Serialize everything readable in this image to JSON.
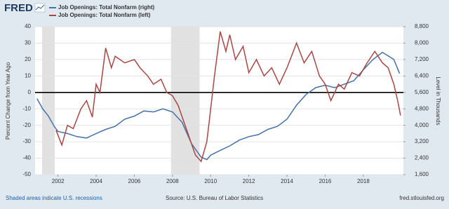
{
  "logo": "FRED",
  "chart_data": {
    "type": "line",
    "ylabel": "Percent Change from Year Ago",
    "y2label": "Level in Thousands",
    "footer_left": "Shaded areas indicate U.S. recessions",
    "source": "Source: U.S. Bureau of Labor Statistics",
    "footer_right": "fred.stlouisfed.org",
    "xlim": [
      2000.8,
      2020.1
    ],
    "xticks": [
      2002,
      2004,
      2006,
      2008,
      2010,
      2012,
      2014,
      2016,
      2018
    ],
    "ylim": [
      -50,
      40
    ],
    "yticks": [
      40,
      30,
      20,
      10,
      0,
      -10,
      -20,
      -30,
      -40,
      -50
    ],
    "y2lim": [
      1600,
      8800
    ],
    "y2ticks": [
      {
        "value": 8800,
        "label": "8,800"
      },
      {
        "value": 8000,
        "label": "8,000"
      },
      {
        "value": 7200,
        "label": "7,200"
      },
      {
        "value": 6400,
        "label": "6,400"
      },
      {
        "value": 5600,
        "label": "5,600"
      },
      {
        "value": 4800,
        "label": "4,800"
      },
      {
        "value": 4000,
        "label": "4,000"
      },
      {
        "value": 3200,
        "label": "3,200"
      },
      {
        "value": 2400,
        "label": "2,400"
      },
      {
        "value": 1600,
        "label": "1,600"
      }
    ],
    "grid": true,
    "recessions": [
      [
        2001.17,
        2001.83
      ],
      [
        2007.92,
        2009.42
      ]
    ],
    "series": [
      {
        "name": "Job Openings: Total Nonfarm (right)",
        "color": "#4572a7",
        "axis": "y2",
        "x": [
          2000.9,
          2001.2,
          2001.5,
          2001.8,
          2002.0,
          2002.5,
          2003.0,
          2003.5,
          2004.0,
          2004.5,
          2005.0,
          2005.5,
          2006.0,
          2006.5,
          2007.0,
          2007.5,
          2008.0,
          2008.5,
          2009.0,
          2009.5,
          2009.8,
          2010.0,
          2010.5,
          2011.0,
          2011.5,
          2012.0,
          2012.5,
          2013.0,
          2013.5,
          2014.0,
          2014.5,
          2015.0,
          2015.5,
          2016.0,
          2016.5,
          2017.0,
          2017.5,
          2018.0,
          2018.5,
          2019.0,
          2019.3,
          2019.6,
          2019.9
        ],
        "values": [
          5300,
          4800,
          4450,
          3950,
          3700,
          3600,
          3450,
          3380,
          3600,
          3800,
          3950,
          4300,
          4450,
          4700,
          4650,
          4800,
          4650,
          4150,
          3100,
          2450,
          2330,
          2550,
          2780,
          3000,
          3280,
          3450,
          3550,
          3800,
          3950,
          4300,
          4980,
          5500,
          5830,
          5950,
          5830,
          6000,
          6170,
          6700,
          7200,
          7550,
          7380,
          7200,
          6520
        ]
      },
      {
        "name": "Job Openings: Total Nonfarm (left)",
        "color": "#aa4643",
        "axis": "y",
        "x": [
          2001.9,
          2002.2,
          2002.5,
          2002.8,
          2003.2,
          2003.5,
          2003.8,
          2004.0,
          2004.2,
          2004.5,
          2004.8,
          2005.0,
          2005.5,
          2006.0,
          2006.3,
          2006.7,
          2007.0,
          2007.4,
          2007.7,
          2008.0,
          2008.3,
          2008.6,
          2008.9,
          2009.2,
          2009.5,
          2009.8,
          2010.0,
          2010.2,
          2010.5,
          2010.8,
          2011.0,
          2011.3,
          2011.7,
          2012.0,
          2012.4,
          2012.8,
          2013.2,
          2013.6,
          2014.0,
          2014.5,
          2014.9,
          2015.3,
          2015.7,
          2016.0,
          2016.3,
          2016.7,
          2017.0,
          2017.4,
          2017.8,
          2018.2,
          2018.6,
          2019.0,
          2019.3,
          2019.6,
          2019.8,
          2019.95
        ],
        "values": [
          -23,
          -32,
          -20,
          -22,
          -10,
          -5,
          -15,
          5,
          0,
          27,
          15,
          22,
          18,
          20,
          15,
          10,
          5,
          8,
          0,
          -2,
          -8,
          -18,
          -28,
          -38,
          -42,
          -30,
          -10,
          10,
          37,
          25,
          35,
          20,
          28,
          12,
          20,
          10,
          15,
          5,
          15,
          30,
          18,
          25,
          10,
          5,
          -5,
          5,
          2,
          12,
          10,
          18,
          25,
          18,
          15,
          5,
          -5,
          -14
        ]
      }
    ]
  }
}
